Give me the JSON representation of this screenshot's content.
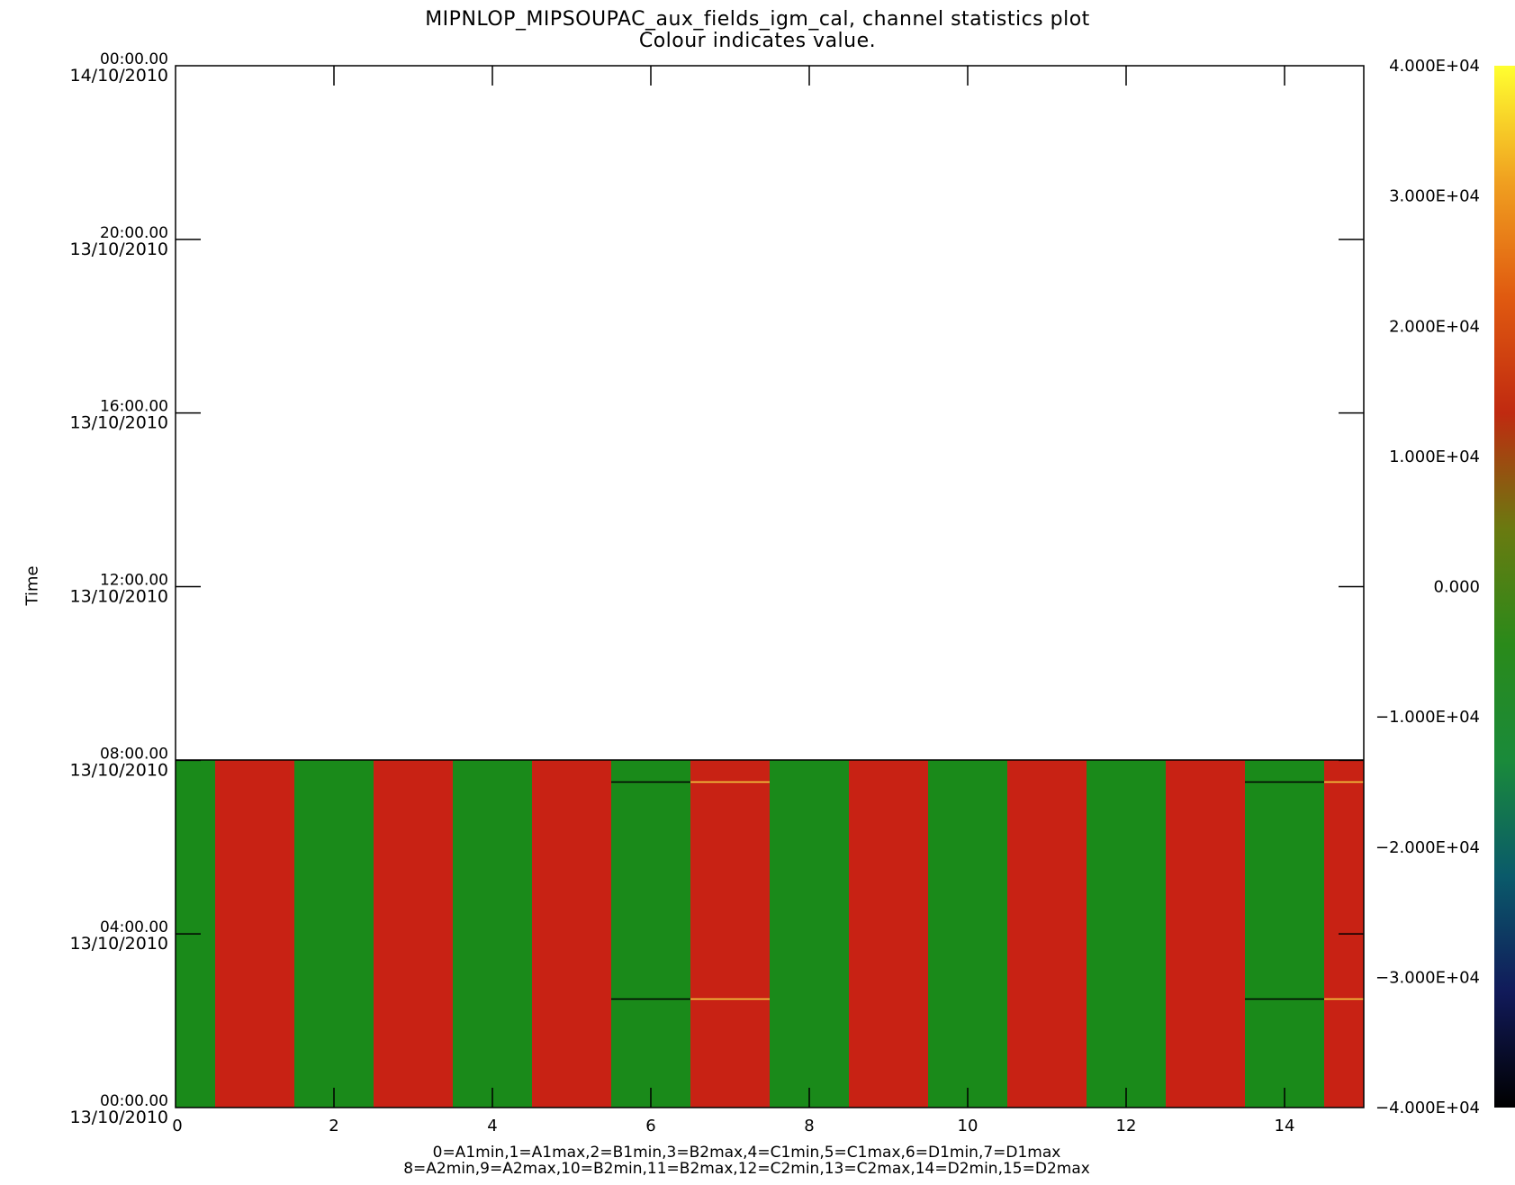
{
  "header": {
    "title": "MIPNLOP_MIPSOUPAC_aux_fields_igm_cal, channel statistics plot",
    "subtitle": "Colour indicates value."
  },
  "footer": {
    "legend_line_1": "0=A1min,1=A1max,2=B1min,3=B2max,4=C1min,5=C1max,6=D1min,7=D1max",
    "legend_line_2": "8=A2min,9=A2max,10=B2min,11=B2max,12=C2min,13=C2max,14=D2min,15=D2max"
  },
  "chart_data": {
    "type": "heatmap",
    "title": "MIPNLOP_MIPSOUPAC_aux_fields_igm_cal, channel statistics plot",
    "subtitle": "Colour indicates value.",
    "xlabel": "",
    "ylabel": "Time",
    "xlim": [
      0,
      15
    ],
    "x_ticks": [
      "0",
      "2",
      "4",
      "6",
      "8",
      "10",
      "12",
      "14"
    ],
    "y_ticks": [
      {
        "time": "00:00.00",
        "date": "13/10/2010"
      },
      {
        "time": "04:00.00",
        "date": "13/10/2010"
      },
      {
        "time": "08:00.00",
        "date": "13/10/2010"
      },
      {
        "time": "12:00.00",
        "date": "13/10/2010"
      },
      {
        "time": "16:00.00",
        "date": "13/10/2010"
      },
      {
        "time": "20:00.00",
        "date": "13/10/2010"
      },
      {
        "time": "00:00.00",
        "date": "14/10/2010"
      }
    ],
    "ylim": [
      "13/10/2010 00:00.00",
      "14/10/2010 00:00.00"
    ],
    "data_time_range": [
      "13/10/2010 00:00.00",
      "13/10/2010 08:00.00"
    ],
    "channels": [
      {
        "index": 0,
        "value": -3000
      },
      {
        "index": 1,
        "value": 9000
      },
      {
        "index": 2,
        "value": -3000
      },
      {
        "index": 3,
        "value": 9000
      },
      {
        "index": 4,
        "value": -3000
      },
      {
        "index": 5,
        "value": 9000
      },
      {
        "index": 6,
        "value": -3000
      },
      {
        "index": 7,
        "value": 9000
      },
      {
        "index": 8,
        "value": -3000
      },
      {
        "index": 9,
        "value": 9000
      },
      {
        "index": 10,
        "value": -3000
      },
      {
        "index": 11,
        "value": 9000
      },
      {
        "index": 12,
        "value": -3000
      },
      {
        "index": 13,
        "value": 9000
      },
      {
        "index": 14,
        "value": -3000
      },
      {
        "index": 15,
        "value": 9000
      }
    ],
    "colorbar": {
      "range": [
        -40000,
        40000
      ],
      "tick_labels": [
        "4.000E+04",
        "3.000E+04",
        "2.000E+04",
        "1.000E+04",
        "0.000",
        "−1.000E+04",
        "−2.000E+04",
        "−3.000E+04",
        "−4.000E+04"
      ],
      "tick_values": [
        40000,
        30000,
        20000,
        10000,
        0,
        -10000,
        -20000,
        -30000,
        -40000
      ]
    },
    "colors": {
      "min_channel": "#1a8a1a",
      "max_channel": "#c82214",
      "colorbar_stops": [
        "#000000",
        "#111a5a",
        "#0a5a6a",
        "#1a8a3a",
        "#2a8a1a",
        "#6a7a10",
        "#c02a10",
        "#e05a10",
        "#f0a020",
        "#ffff30"
      ]
    },
    "grid": false
  }
}
